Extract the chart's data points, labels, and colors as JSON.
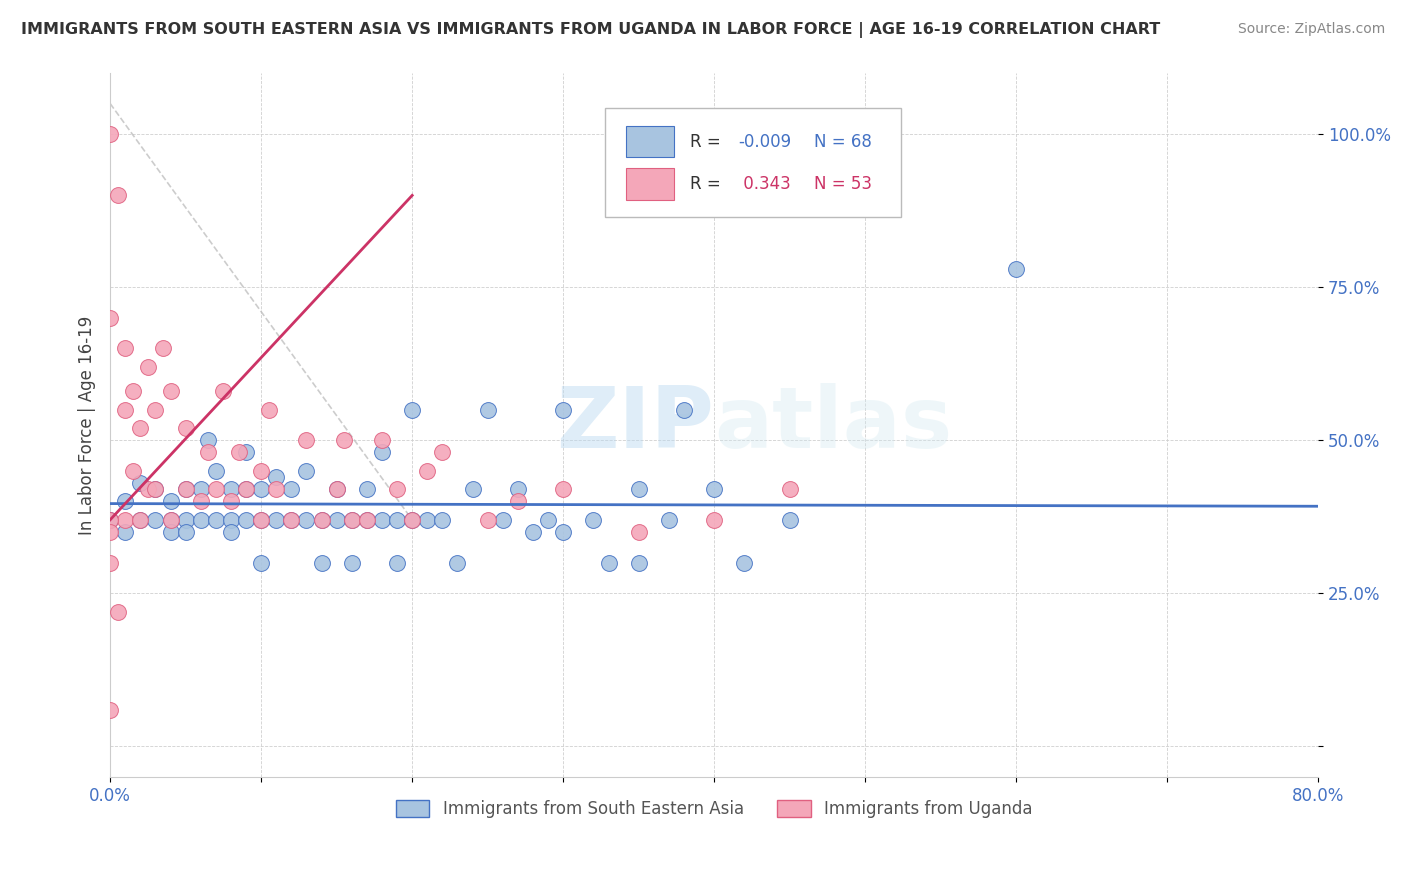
{
  "title": "IMMIGRANTS FROM SOUTH EASTERN ASIA VS IMMIGRANTS FROM UGANDA IN LABOR FORCE | AGE 16-19 CORRELATION CHART",
  "source": "Source: ZipAtlas.com",
  "ylabel": "In Labor Force | Age 16-19",
  "xlim": [
    0.0,
    0.8
  ],
  "ylim": [
    -0.05,
    1.1
  ],
  "y_tick_positions": [
    0.0,
    0.25,
    0.5,
    0.75,
    1.0
  ],
  "y_tick_labels": [
    "",
    "25.0%",
    "50.0%",
    "75.0%",
    "100.0%"
  ],
  "r1": "-0.009",
  "n1": "68",
  "r2": "0.343",
  "n2": "53",
  "blue_color": "#a8c4e0",
  "pink_color": "#f4a7b9",
  "blue_edge": "#4472c4",
  "pink_edge": "#e06080",
  "trendline_blue": "#4472c4",
  "trendline_pink": "#cc3366",
  "trendline_dashed_color": "#c0c0c0",
  "watermark": "ZIPatlas",
  "blue_scatter_x": [
    0.0,
    0.01,
    0.01,
    0.02,
    0.02,
    0.03,
    0.03,
    0.04,
    0.04,
    0.04,
    0.05,
    0.05,
    0.05,
    0.06,
    0.06,
    0.065,
    0.07,
    0.07,
    0.08,
    0.08,
    0.08,
    0.09,
    0.09,
    0.09,
    0.1,
    0.1,
    0.1,
    0.11,
    0.11,
    0.12,
    0.12,
    0.13,
    0.13,
    0.14,
    0.14,
    0.15,
    0.15,
    0.16,
    0.16,
    0.17,
    0.17,
    0.18,
    0.18,
    0.19,
    0.19,
    0.2,
    0.2,
    0.21,
    0.22,
    0.23,
    0.24,
    0.25,
    0.26,
    0.27,
    0.28,
    0.29,
    0.3,
    0.3,
    0.32,
    0.33,
    0.35,
    0.35,
    0.37,
    0.38,
    0.4,
    0.42,
    0.45,
    0.6
  ],
  "blue_scatter_y": [
    0.37,
    0.4,
    0.35,
    0.37,
    0.43,
    0.37,
    0.42,
    0.37,
    0.4,
    0.35,
    0.37,
    0.42,
    0.35,
    0.37,
    0.42,
    0.5,
    0.37,
    0.45,
    0.37,
    0.42,
    0.35,
    0.37,
    0.42,
    0.48,
    0.37,
    0.42,
    0.3,
    0.37,
    0.44,
    0.37,
    0.42,
    0.37,
    0.45,
    0.37,
    0.3,
    0.37,
    0.42,
    0.37,
    0.3,
    0.37,
    0.42,
    0.37,
    0.48,
    0.37,
    0.3,
    0.37,
    0.55,
    0.37,
    0.37,
    0.3,
    0.42,
    0.55,
    0.37,
    0.42,
    0.35,
    0.37,
    0.55,
    0.35,
    0.37,
    0.3,
    0.42,
    0.3,
    0.37,
    0.55,
    0.42,
    0.3,
    0.37,
    0.78
  ],
  "pink_scatter_x": [
    0.0,
    0.0,
    0.0,
    0.005,
    0.005,
    0.01,
    0.01,
    0.01,
    0.015,
    0.015,
    0.02,
    0.02,
    0.025,
    0.025,
    0.03,
    0.03,
    0.035,
    0.04,
    0.04,
    0.05,
    0.05,
    0.06,
    0.065,
    0.07,
    0.075,
    0.08,
    0.085,
    0.09,
    0.1,
    0.1,
    0.105,
    0.11,
    0.12,
    0.13,
    0.14,
    0.15,
    0.155,
    0.16,
    0.17,
    0.18,
    0.19,
    0.2,
    0.21,
    0.22,
    0.25,
    0.27,
    0.3,
    0.35,
    0.4,
    0.45,
    0.0,
    0.0,
    0.0
  ],
  "pink_scatter_y": [
    0.06,
    0.7,
    1.0,
    0.9,
    0.22,
    0.37,
    0.55,
    0.65,
    0.45,
    0.58,
    0.37,
    0.52,
    0.42,
    0.62,
    0.42,
    0.55,
    0.65,
    0.37,
    0.58,
    0.42,
    0.52,
    0.4,
    0.48,
    0.42,
    0.58,
    0.4,
    0.48,
    0.42,
    0.37,
    0.45,
    0.55,
    0.42,
    0.37,
    0.5,
    0.37,
    0.42,
    0.5,
    0.37,
    0.37,
    0.5,
    0.42,
    0.37,
    0.45,
    0.48,
    0.37,
    0.4,
    0.42,
    0.35,
    0.37,
    0.42,
    0.37,
    0.35,
    0.3
  ]
}
